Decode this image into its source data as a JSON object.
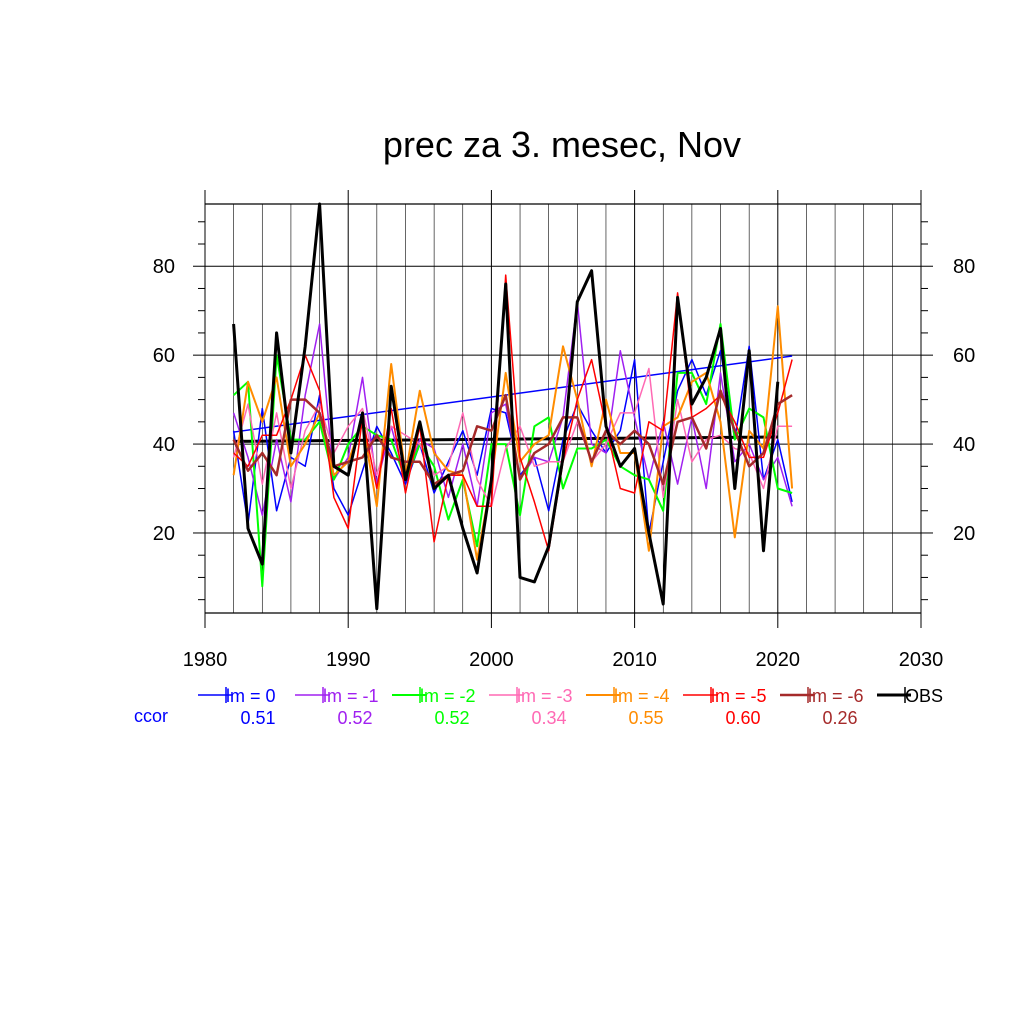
{
  "chart_data": {
    "type": "line",
    "title": "prec za 3. mesec, Nov",
    "xlabel": "",
    "ylabel": "",
    "xlim": [
      1980,
      2030
    ],
    "ylim": [
      2,
      94
    ],
    "x_ticks": [
      1980,
      1990,
      2000,
      2010,
      2020,
      2030
    ],
    "y_ticks": [
      20,
      40,
      60,
      80
    ],
    "grid": true,
    "legend_position": "below",
    "ccor_label": "ccor",
    "x": [
      1982,
      1983,
      1984,
      1985,
      1986,
      1987,
      1988,
      1989,
      1990,
      1991,
      1992,
      1993,
      1994,
      1995,
      1996,
      1997,
      1998,
      1999,
      2000,
      2001,
      2002,
      2003,
      2004,
      2005,
      2006,
      2007,
      2008,
      2009,
      2010,
      2011,
      2012,
      2013,
      2014,
      2015,
      2016,
      2017,
      2018,
      2019,
      2020,
      2021
    ],
    "series": [
      {
        "name": "lm = 0",
        "ccor": "0.51",
        "color": "#0000ff",
        "width": 1.5,
        "values": [
          43,
          22,
          48,
          25,
          37,
          35,
          51,
          30,
          24,
          34,
          44,
          38,
          31,
          40,
          29,
          36,
          43,
          33,
          48,
          47,
          33,
          37,
          25,
          41,
          49,
          43,
          38,
          43,
          59,
          20,
          36,
          52,
          59,
          51,
          61,
          41,
          62,
          32,
          41,
          27
        ],
        "trend": [
          42.7,
          59.8
        ]
      },
      {
        "name": "lm = -1",
        "ccor": "0.52",
        "color": "#a020f0",
        "width": 1.5,
        "values": [
          47,
          37,
          24,
          41,
          27,
          51,
          67,
          32,
          37,
          55,
          31,
          44,
          32,
          41,
          39,
          28,
          40,
          26,
          47,
          49,
          32,
          37,
          36,
          46,
          72,
          40,
          38,
          61,
          46,
          32,
          45,
          31,
          46,
          30,
          56,
          36,
          40,
          32,
          37,
          26
        ]
      },
      {
        "name": "lm = -2",
        "ccor": "0.52",
        "color": "#00ff00",
        "width": 2,
        "values": [
          51,
          54,
          8,
          60,
          41,
          41,
          45,
          32,
          40,
          44,
          42,
          41,
          32,
          40,
          35,
          23,
          32,
          17,
          40,
          40,
          24,
          44,
          46,
          30,
          39,
          39,
          41,
          35,
          33,
          32,
          25,
          56,
          56,
          49,
          67,
          41,
          48,
          46,
          30,
          29
        ]
      },
      {
        "name": "lm = -3",
        "ccor": "0.34",
        "color": "#ff69b4",
        "width": 1.5,
        "values": [
          37,
          49,
          31,
          47,
          30,
          43,
          49,
          38,
          44,
          48,
          33,
          44,
          42,
          40,
          33,
          35,
          47,
          32,
          26,
          39,
          44,
          35,
          36,
          36,
          45,
          36,
          40,
          47,
          47,
          57,
          28,
          50,
          36,
          41,
          42,
          39,
          38,
          30,
          44,
          44
        ]
      },
      {
        "name": "lm = -4",
        "ccor": "0.55",
        "color": "#ff8c00",
        "width": 2,
        "values": [
          33,
          54,
          45,
          55,
          35,
          40,
          47,
          33,
          36,
          45,
          26,
          58,
          33,
          52,
          38,
          34,
          33,
          14,
          32,
          56,
          36,
          40,
          42,
          62,
          50,
          35,
          50,
          38,
          38,
          16,
          44,
          46,
          54,
          56,
          45,
          19,
          43,
          39,
          71,
          30
        ]
      },
      {
        "name": "lm = -5",
        "ccor": "0.60",
        "color": "#ff0000",
        "width": 1.5,
        "values": [
          38,
          35,
          42,
          42,
          50,
          60,
          52,
          28,
          21,
          46,
          30,
          48,
          29,
          44,
          18,
          33,
          33,
          26,
          26,
          78,
          37,
          27,
          16,
          36,
          50,
          59,
          44,
          30,
          29,
          45,
          43,
          74,
          46,
          48,
          51,
          45,
          37,
          37,
          47,
          59
        ]
      },
      {
        "name": "lm = -6",
        "ccor": "0.26",
        "color": "#a52a2a",
        "width": 2.5,
        "values": [
          41,
          34,
          38,
          33,
          50,
          50,
          47,
          35,
          36,
          37,
          42,
          37,
          36,
          36,
          31,
          33,
          34,
          44,
          43,
          51,
          32,
          38,
          40,
          46,
          46,
          36,
          43,
          40,
          43,
          40,
          31,
          45,
          46,
          39,
          52,
          43,
          35,
          38,
          49,
          51
        ]
      },
      {
        "name": "OBS",
        "ccor": "",
        "color": "#000000",
        "width": 3,
        "values": [
          67,
          21,
          13,
          65,
          38,
          62,
          94,
          35,
          33,
          47,
          3,
          53,
          32,
          45,
          30,
          33,
          21,
          11,
          32,
          76,
          10,
          9,
          17,
          37,
          72,
          79,
          44,
          35,
          39,
          20,
          4,
          73,
          49,
          55,
          66,
          30,
          61,
          16,
          54,
          null
        ],
        "trend": [
          40.6,
          41.6
        ]
      }
    ]
  }
}
